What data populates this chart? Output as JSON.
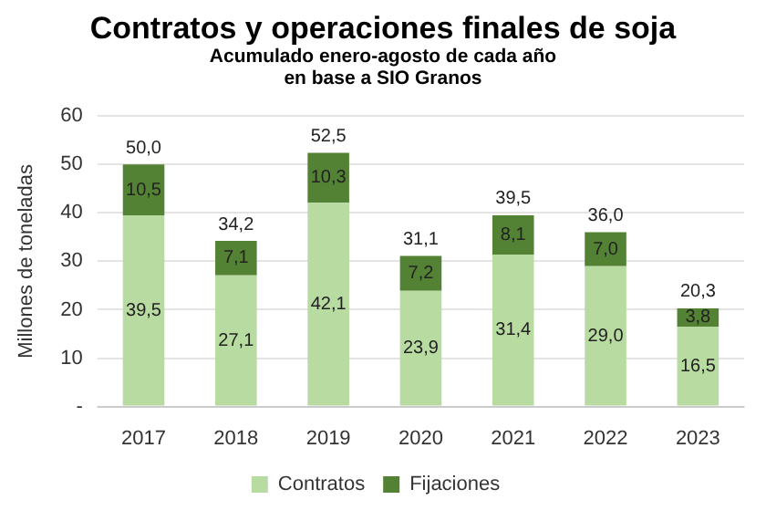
{
  "chart_data": {
    "type": "bar",
    "stacked": true,
    "title": "Contratos y operaciones finales de soja",
    "subtitle": [
      "Acumulado enero-agosto de cada año",
      "en base a SIO Granos"
    ],
    "ylabel": "Millones de toneladas",
    "categories": [
      "2017",
      "2018",
      "2019",
      "2020",
      "2021",
      "2022",
      "2023"
    ],
    "series": [
      {
        "name": "Contratos",
        "color": "#b7dba0",
        "values": [
          39.5,
          27.1,
          42.1,
          23.9,
          31.4,
          29.0,
          16.5
        ],
        "value_labels": [
          "39,5",
          "27,1",
          "42,1",
          "23,9",
          "31,4",
          "29,0",
          "16,5"
        ]
      },
      {
        "name": "Fijaciones",
        "color": "#548235",
        "values": [
          10.5,
          7.1,
          10.3,
          7.2,
          8.1,
          7.0,
          3.8
        ],
        "value_labels": [
          "10,5",
          "7,1",
          "10,3",
          "7,2",
          "8,1",
          "7,0",
          "3,8"
        ]
      }
    ],
    "totals": [
      "50,0",
      "34,2",
      "52,5",
      "31,1",
      "39,5",
      "36,0",
      "20,3"
    ],
    "ylim": [
      0,
      60
    ],
    "yticks": [
      {
        "value": 0,
        "label": "-"
      },
      10,
      20,
      30,
      40,
      50,
      60
    ],
    "grid": "y",
    "legend": "bottom"
  }
}
